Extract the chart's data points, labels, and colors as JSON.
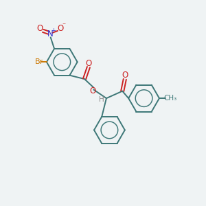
{
  "bg_color": "#eff3f4",
  "ring_color": "#3d7777",
  "O_color": "#cc2222",
  "N_color": "#3333cc",
  "Br_color": "#cc7700",
  "H_color": "#888888",
  "bond_lw": 1.4,
  "figsize": [
    3.0,
    3.0
  ],
  "dpi": 100,
  "xlim": [
    0,
    10
  ],
  "ylim": [
    0,
    10
  ]
}
